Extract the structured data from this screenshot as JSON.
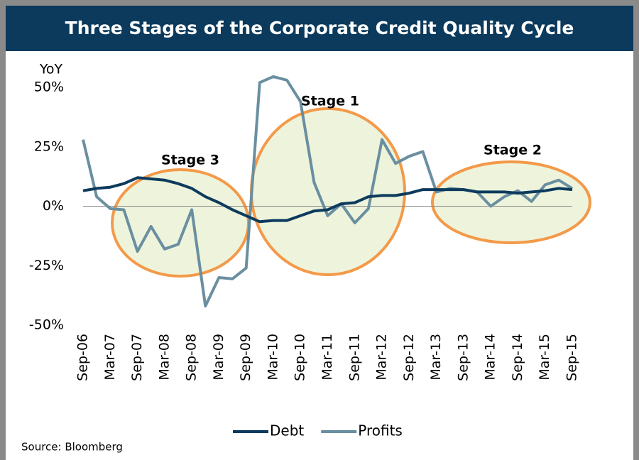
{
  "chart_data": {
    "type": "line",
    "title": "Three Stages of the Corporate Credit Quality Cycle",
    "y_axis_label": "YoY",
    "source": "Source:  Bloomberg",
    "annotations": [
      "Stage 3",
      "Stage 1",
      "Stage 2"
    ],
    "categories": [
      "Sep-06",
      null,
      "Mar-07",
      null,
      "Sep-07",
      null,
      "Mar-08",
      null,
      "Sep-08",
      null,
      "Mar-09",
      null,
      "Sep-09",
      null,
      "Mar-10",
      null,
      "Sep-10",
      null,
      "Mar-11",
      null,
      "Sep-11",
      null,
      "Mar-12",
      null,
      "Sep-12",
      null,
      "Mar-13",
      null,
      "Sep-13",
      null,
      "Mar-14",
      null,
      "Sep-14",
      null,
      "Mar-15",
      null,
      "Sep-15"
    ],
    "series": [
      {
        "name": "Debt",
        "color": "#0d3b5e",
        "values": [
          6.5,
          7.5,
          8,
          9.5,
          12,
          11.5,
          11,
          9.5,
          7.5,
          4,
          1.5,
          -1.5,
          -4,
          -6.5,
          -6,
          -6,
          -4,
          -2,
          -1.5,
          1,
          1.5,
          4,
          4.5,
          4.5,
          5.5,
          7,
          7,
          7,
          7,
          6,
          6,
          6,
          5.5,
          6,
          6.5,
          7.5,
          7
        ]
      },
      {
        "name": "Profits",
        "color": "#6a8fa0",
        "values": [
          28,
          4,
          -1,
          -1.5,
          -19,
          -8.5,
          -18,
          -16,
          -1.5,
          -42,
          -30,
          -30.5,
          -26,
          52,
          54.5,
          53,
          44,
          10,
          -4,
          1,
          -7,
          -1,
          28,
          18,
          21,
          23,
          6,
          7.5,
          7,
          6,
          0,
          4,
          6.5,
          2,
          9,
          11,
          7.5
        ]
      }
    ],
    "ylim": [
      -50,
      50
    ],
    "yticks": [
      {
        "value": 50,
        "label": "50%"
      },
      {
        "value": 25,
        "label": "25%"
      },
      {
        "value": 0,
        "label": "0%"
      },
      {
        "value": -25,
        "label": "-25%"
      },
      {
        "value": -50,
        "label": "-50%"
      }
    ]
  }
}
